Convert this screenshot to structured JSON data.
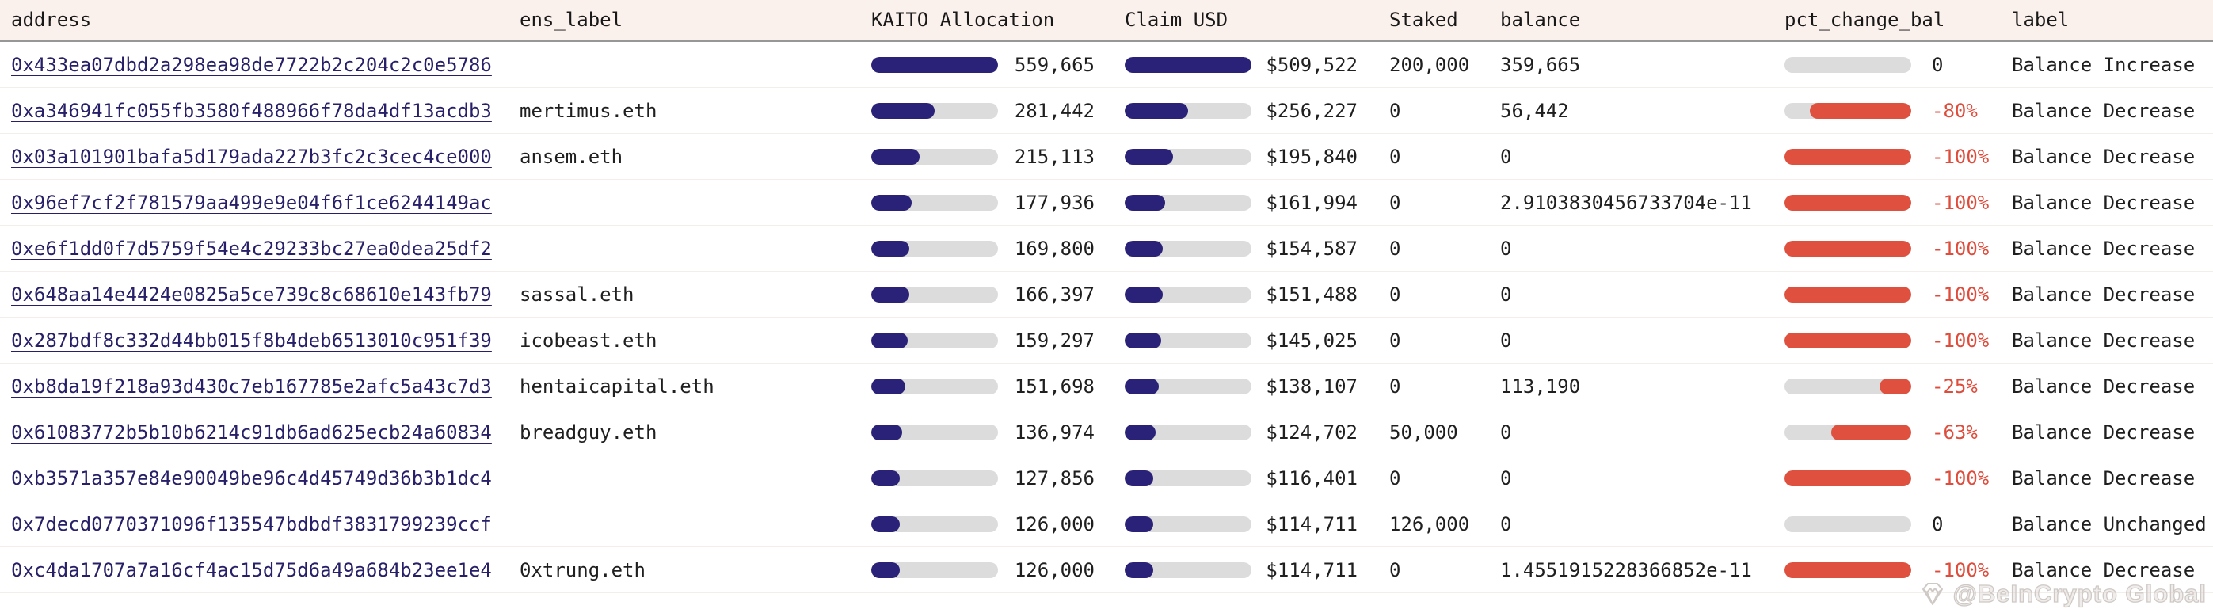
{
  "table": {
    "columns": [
      {
        "key": "address",
        "label": "address"
      },
      {
        "key": "ens",
        "label": "ens_label"
      },
      {
        "key": "kaito",
        "label": "KAITO Allocation"
      },
      {
        "key": "claim",
        "label": "Claim USD"
      },
      {
        "key": "staked",
        "label": "Staked"
      },
      {
        "key": "balance",
        "label": "balance"
      },
      {
        "key": "pct",
        "label": "pct_change_bal"
      },
      {
        "key": "label",
        "label": "label"
      }
    ],
    "rows": [
      {
        "address": "0x433ea07dbd2a298ea98de7722b2c204c2c0e5786",
        "ens": "",
        "kaito": "559,665",
        "kaito_fill": 100,
        "claim": "$509,522",
        "claim_fill": 100,
        "staked": "200,000",
        "balance": "359,665",
        "pct": "0",
        "pct_fill": 0,
        "label": "Balance Increase"
      },
      {
        "address": "0xa346941fc055fb3580f488966f78da4df13acdb3",
        "ens": "mertimus.eth",
        "kaito": "281,442",
        "kaito_fill": 50.3,
        "claim": "$256,227",
        "claim_fill": 50.3,
        "staked": "0",
        "balance": "56,442",
        "pct": "-80%",
        "pct_fill": 80,
        "label": "Balance Decrease"
      },
      {
        "address": "0x03a101901bafa5d179ada227b3fc2c3cec4ce000",
        "ens": "ansem.eth",
        "kaito": "215,113",
        "kaito_fill": 38.4,
        "claim": "$195,840",
        "claim_fill": 38.4,
        "staked": "0",
        "balance": "0",
        "pct": "-100%",
        "pct_fill": 100,
        "label": "Balance Decrease"
      },
      {
        "address": "0x96ef7cf2f781579aa499e9e04f6f1ce6244149ac",
        "ens": "",
        "kaito": "177,936",
        "kaito_fill": 31.8,
        "claim": "$161,994",
        "claim_fill": 31.8,
        "staked": "0",
        "balance": "2.9103830456733704e-11",
        "pct": "-100%",
        "pct_fill": 100,
        "label": "Balance Decrease"
      },
      {
        "address": "0xe6f1dd0f7d5759f54e4c29233bc27ea0dea25df2",
        "ens": "",
        "kaito": "169,800",
        "kaito_fill": 30.3,
        "claim": "$154,587",
        "claim_fill": 30.3,
        "staked": "0",
        "balance": "0",
        "pct": "-100%",
        "pct_fill": 100,
        "label": "Balance Decrease"
      },
      {
        "address": "0x648aa14e4424e0825a5ce739c8c68610e143fb79",
        "ens": "sassal.eth",
        "kaito": "166,397",
        "kaito_fill": 29.7,
        "claim": "$151,488",
        "claim_fill": 29.7,
        "staked": "0",
        "balance": "0",
        "pct": "-100%",
        "pct_fill": 100,
        "label": "Balance Decrease"
      },
      {
        "address": "0x287bdf8c332d44bb015f8b4deb6513010c951f39",
        "ens": "icobeast.eth",
        "kaito": "159,297",
        "kaito_fill": 28.5,
        "claim": "$145,025",
        "claim_fill": 28.5,
        "staked": "0",
        "balance": "0",
        "pct": "-100%",
        "pct_fill": 100,
        "label": "Balance Decrease"
      },
      {
        "address": "0xb8da19f218a93d430c7eb167785e2afc5a43c7d3",
        "ens": "hentaicapital.eth",
        "kaito": "151,698",
        "kaito_fill": 27.1,
        "claim": "$138,107",
        "claim_fill": 27.1,
        "staked": "0",
        "balance": "113,190",
        "pct": "-25%",
        "pct_fill": 25,
        "label": "Balance Decrease"
      },
      {
        "address": "0x61083772b5b10b6214c91db6ad625ecb24a60834",
        "ens": "breadguy.eth",
        "kaito": "136,974",
        "kaito_fill": 24.5,
        "claim": "$124,702",
        "claim_fill": 24.5,
        "staked": "50,000",
        "balance": "0",
        "pct": "-63%",
        "pct_fill": 63,
        "label": "Balance Decrease"
      },
      {
        "address": "0xb3571a357e84e90049be96c4d45749d36b3b1dc4",
        "ens": "",
        "kaito": "127,856",
        "kaito_fill": 22.8,
        "claim": "$116,401",
        "claim_fill": 22.8,
        "staked": "0",
        "balance": "0",
        "pct": "-100%",
        "pct_fill": 100,
        "label": "Balance Decrease"
      },
      {
        "address": "0x7decd0770371096f135547bdbdf3831799239ccf",
        "ens": "",
        "kaito": "126,000",
        "kaito_fill": 22.5,
        "claim": "$114,711",
        "claim_fill": 22.5,
        "staked": "126,000",
        "balance": "0",
        "pct": "0",
        "pct_fill": 0,
        "label": "Balance Unchanged"
      },
      {
        "address": "0xc4da1707a7a16cf4ac15d75d6a49a684b23ee1e4",
        "ens": "0xtrung.eth",
        "kaito": "126,000",
        "kaito_fill": 22.5,
        "claim": "$114,711",
        "claim_fill": 22.5,
        "staked": "0",
        "balance": "1.4551915228366852e-11",
        "pct": "-100%",
        "pct_fill": 100,
        "label": "Balance Decrease"
      }
    ]
  },
  "watermark": {
    "text": "@BeInCrypto Global",
    "icon": "gem-icon"
  },
  "colors": {
    "header_bg": "#faf0ec",
    "header_border": "#979797",
    "bar_navy": "#2a2178",
    "bar_red": "#e0503e",
    "bar_track": "#dcdcdc",
    "address_link": "#272069",
    "pct_negative_text": "#df4c3b",
    "row_separator": "#f3eeea"
  }
}
